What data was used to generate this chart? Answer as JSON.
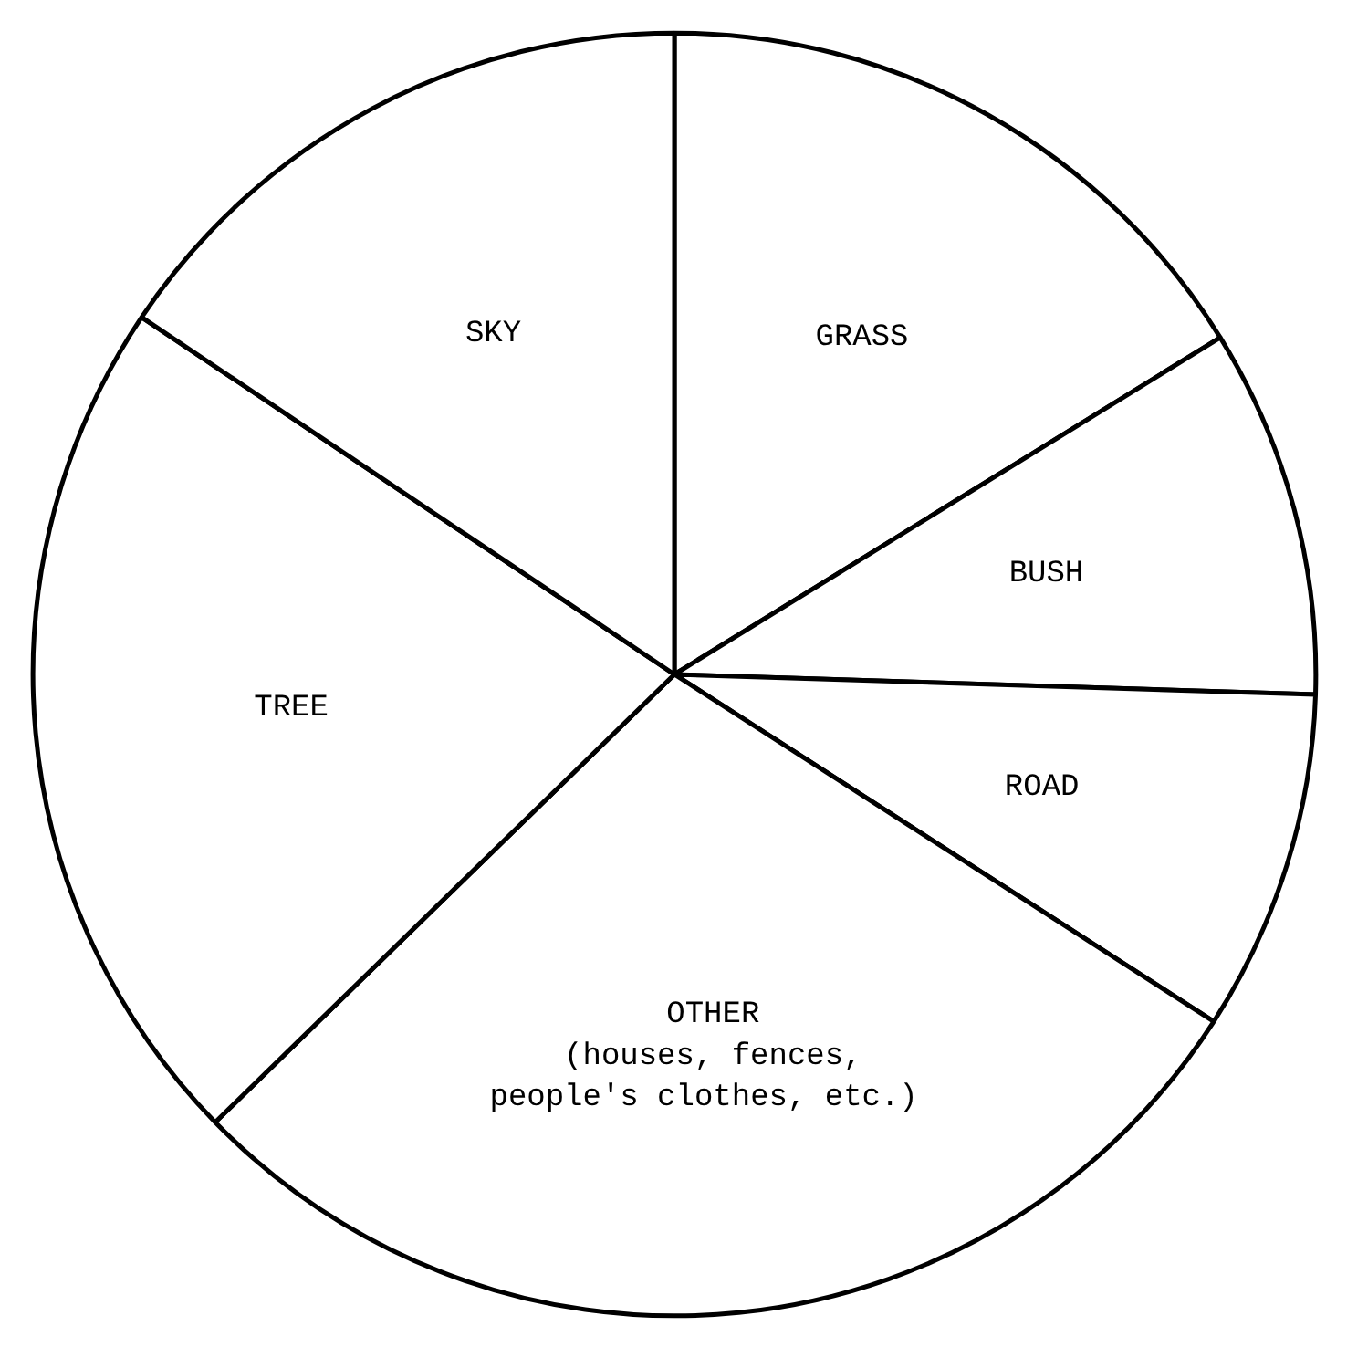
{
  "chart_data": {
    "type": "pie",
    "categories": [
      "GRASS",
      "BUSH",
      "ROAD",
      "OTHER\n(houses, fences,\n people's clothes, etc.)",
      "TREE",
      "SKY"
    ],
    "values": [
      16.2,
      9.3,
      8.6,
      28.6,
      21.7,
      15.6
    ],
    "colors": [
      "#ffffff",
      "#ffffff",
      "#ffffff",
      "#ffffff",
      "#ffffff",
      "#ffffff"
    ]
  }
}
